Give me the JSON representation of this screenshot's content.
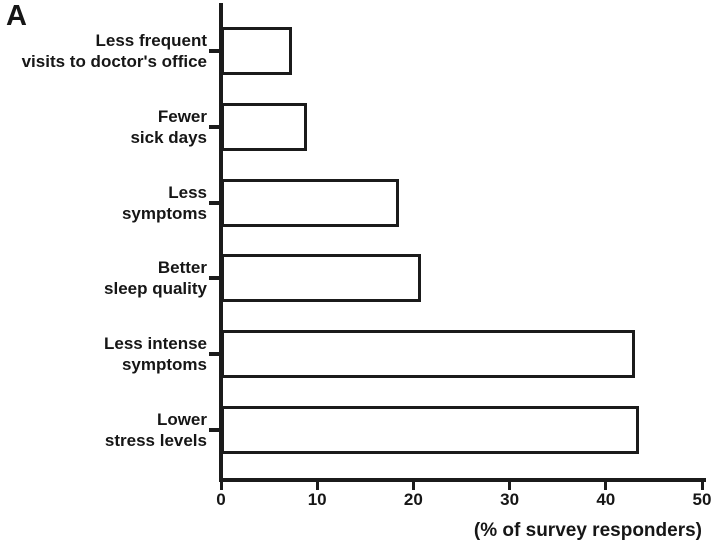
{
  "panel_label": "A",
  "chart_data": {
    "type": "bar",
    "orientation": "horizontal",
    "title": "",
    "categories": [
      "Less frequent\nvisits to doctor's office",
      "Fewer\nsick days",
      "Less\nsymptoms",
      "Better\nsleep quality",
      "Less intense\nsymptoms",
      "Lower\nstress levels"
    ],
    "values": [
      7.4,
      8.9,
      18.5,
      20.8,
      43.0,
      43.5
    ],
    "xlabel": "(% of survey responders)",
    "ylabel": "",
    "x_ticks": [
      0,
      10,
      20,
      30,
      40,
      50
    ],
    "xlim": [
      0,
      50
    ],
    "grid": false,
    "legend": "none",
    "bar_fill": "#ffffff",
    "bar_border": "#1b1b1b",
    "axis_color": "#1b1b1b"
  }
}
